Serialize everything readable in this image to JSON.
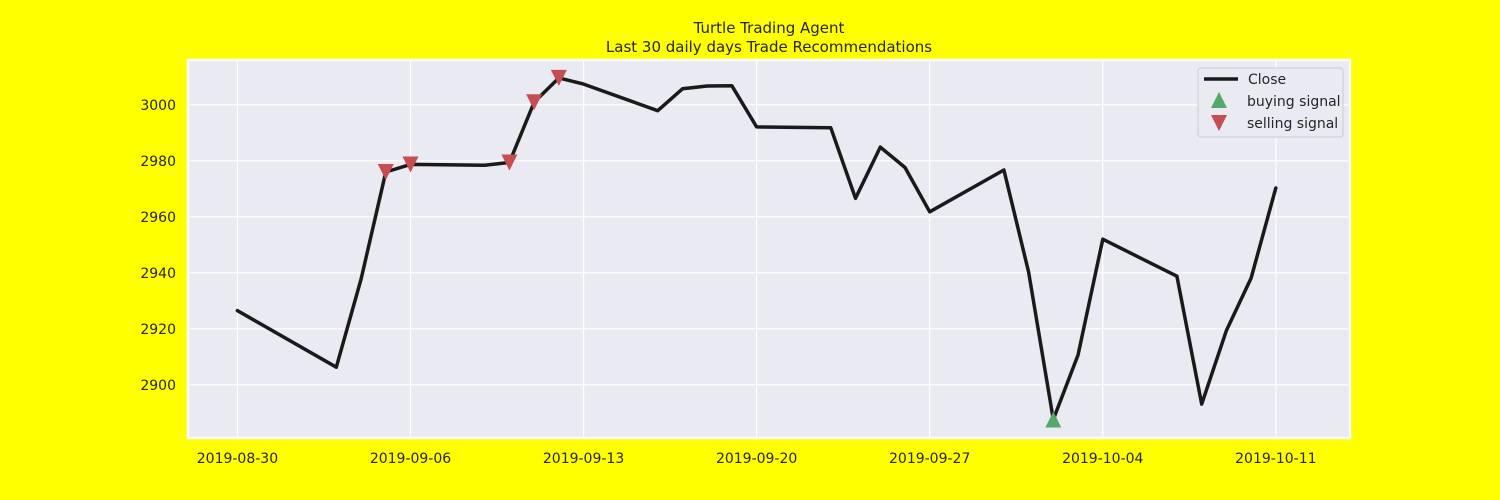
{
  "chart_data": {
    "type": "line",
    "title": "Turtle Trading Agent",
    "subtitle": "Last 30 daily days Trade Recommendations",
    "xlabel": "",
    "ylabel": "",
    "colors": {
      "figure_background": "#ffff00",
      "plot_background": "#eaeaf2",
      "grid": "#ffffff",
      "line": "#1a1a1a",
      "buy": "#55a868",
      "sell": "#c44e52"
    },
    "grid": true,
    "legend_position": "upper right",
    "xlim": [
      "2019-08-28",
      "2019-10-14"
    ],
    "ylim": [
      2881,
      3016
    ],
    "x_ticks": [
      "2019-08-30",
      "2019-09-06",
      "2019-09-13",
      "2019-09-20",
      "2019-09-27",
      "2019-10-04",
      "2019-10-11"
    ],
    "y_ticks": [
      2900,
      2920,
      2940,
      2960,
      2980,
      3000
    ],
    "series": [
      {
        "name": "Close",
        "x": [
          "2019-08-30",
          "2019-09-03",
          "2019-09-04",
          "2019-09-05",
          "2019-09-06",
          "2019-09-09",
          "2019-09-10",
          "2019-09-11",
          "2019-09-12",
          "2019-09-13",
          "2019-09-16",
          "2019-09-17",
          "2019-09-18",
          "2019-09-19",
          "2019-09-20",
          "2019-09-23",
          "2019-09-24",
          "2019-09-25",
          "2019-09-26",
          "2019-09-27",
          "2019-09-30",
          "2019-10-01",
          "2019-10-02",
          "2019-10-03",
          "2019-10-04",
          "2019-10-07",
          "2019-10-08",
          "2019-10-09",
          "2019-10-10",
          "2019-10-11"
        ],
        "values": [
          2926.5,
          2906.3,
          2937.8,
          2976.0,
          2978.7,
          2978.4,
          2979.4,
          3000.9,
          3009.6,
          3007.4,
          2997.9,
          3005.7,
          3006.7,
          3006.8,
          2992.1,
          2991.8,
          2966.6,
          2984.9,
          2977.6,
          2961.8,
          2976.7,
          2940.3,
          2887.6,
          2910.6,
          2952.0,
          2938.8,
          2893.1,
          2919.4,
          2938.1,
          2970.3
        ]
      }
    ],
    "buying_signal": {
      "name": "buying signal",
      "x": [
        "2019-10-02"
      ],
      "values": [
        2887.6
      ]
    },
    "selling_signal": {
      "name": "selling signal",
      "x": [
        "2019-09-05",
        "2019-09-06",
        "2019-09-10",
        "2019-09-11",
        "2019-09-12"
      ],
      "values": [
        2976.0,
        2978.7,
        2979.4,
        3000.9,
        3009.6
      ]
    }
  }
}
